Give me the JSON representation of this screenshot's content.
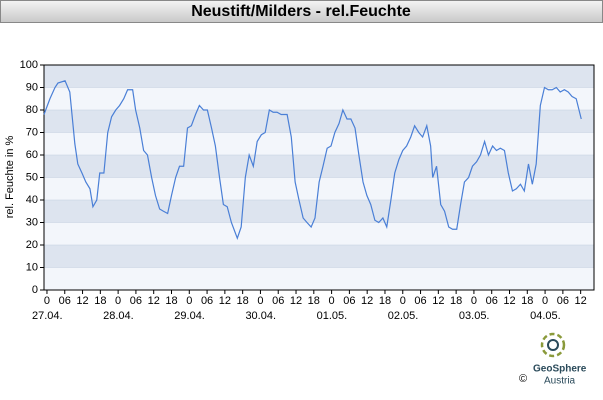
{
  "chart_data": {
    "type": "line",
    "title": "Neustift/Milders - rel.Feuchte",
    "y_label": "rel. Feuchte in %",
    "x": [
      -1.0,
      1.0,
      2.7,
      3.7,
      6.1,
      7.7,
      9.4,
      10.4,
      11.8,
      13.1,
      14.5,
      15.5,
      16.8,
      17.8,
      19.2,
      20.5,
      21.8,
      23.2,
      24.5,
      25.9,
      27.2,
      28.9,
      29.9,
      31.3,
      32.6,
      33.9,
      35.3,
      36.6,
      38.0,
      39.3,
      40.7,
      42.0,
      43.4,
      44.7,
      46.1,
      47.4,
      48.7,
      50.1,
      51.4,
      52.8,
      54.1,
      55.5,
      56.8,
      58.2,
      59.5,
      60.8,
      62.2,
      64.2,
      65.5,
      66.9,
      68.2,
      69.6,
      70.9,
      72.3,
      73.6,
      75.0,
      76.3,
      77.6,
      79.0,
      81.0,
      82.4,
      83.7,
      85.0,
      86.4,
      87.7,
      89.1,
      90.4,
      91.8,
      93.1,
      94.5,
      95.8,
      97.1,
      98.5,
      99.8,
      101.2,
      102.5,
      103.9,
      105.2,
      106.6,
      107.9,
      109.2,
      110.6,
      111.9,
      113.3,
      114.6,
      116.0,
      117.3,
      118.7,
      120.0,
      121.3,
      122.7,
      124.0,
      125.4,
      126.7,
      128.1,
      129.4,
      130.1,
      131.4,
      132.8,
      134.1,
      135.5,
      136.8,
      138.2,
      139.5,
      140.8,
      142.2,
      143.5,
      144.9,
      146.2,
      147.6,
      148.9,
      150.3,
      151.6,
      152.9,
      154.3,
      155.6,
      157.0,
      158.3,
      159.7,
      161.0,
      162.4,
      163.7,
      165.0,
      166.4,
      167.8,
      169.1,
      170.4,
      171.8,
      173.1,
      174.5,
      175.8,
      177.1,
      178.5,
      180.2
    ],
    "series": [
      {
        "name": "rel.Feuchte",
        "color": "#4a7fd6",
        "values": [
          78,
          85,
          90,
          92,
          93,
          88,
          65,
          56,
          52,
          48,
          45,
          37,
          40,
          52,
          52,
          70,
          77,
          80,
          82,
          85,
          89,
          89,
          80,
          72,
          62,
          60,
          50,
          42,
          36,
          35,
          34,
          42,
          50,
          55,
          55,
          72,
          73,
          78,
          82,
          80,
          80,
          72,
          64,
          50,
          38,
          37,
          30,
          23,
          28,
          50,
          60,
          55,
          66,
          69,
          70,
          80,
          79,
          79,
          78,
          78,
          68,
          48,
          40,
          32,
          30,
          28,
          32,
          48,
          55,
          63,
          64,
          70,
          74,
          80,
          76,
          76,
          72,
          60,
          48,
          42,
          38,
          31,
          30,
          32,
          28,
          40,
          52,
          58,
          62,
          64,
          68,
          73,
          70,
          68,
          73,
          64,
          50,
          55,
          38,
          35,
          28,
          27,
          27,
          38,
          48,
          50,
          55,
          57,
          60,
          66,
          60,
          64,
          62,
          63,
          62,
          52,
          44,
          45,
          47,
          44,
          56,
          47,
          56,
          82,
          90,
          89,
          89,
          90,
          88,
          89,
          88,
          86,
          85,
          76
        ]
      }
    ],
    "xlim": [
      -1,
      184.5
    ],
    "xticks": [
      {
        "value": 0,
        "label": "0"
      },
      {
        "value": 6,
        "label": "06"
      },
      {
        "value": 12,
        "label": "12"
      },
      {
        "value": 18,
        "label": "18"
      },
      {
        "value": 24,
        "label": "0"
      },
      {
        "value": 30,
        "label": "06"
      },
      {
        "value": 36,
        "label": "12"
      },
      {
        "value": 42,
        "label": "18"
      },
      {
        "value": 48,
        "label": "0"
      },
      {
        "value": 54,
        "label": "06"
      },
      {
        "value": 60,
        "label": "12"
      },
      {
        "value": 66,
        "label": "18"
      },
      {
        "value": 72,
        "label": "0"
      },
      {
        "value": 78,
        "label": "06"
      },
      {
        "value": 84,
        "label": "12"
      },
      {
        "value": 90,
        "label": "18"
      },
      {
        "value": 96,
        "label": "0"
      },
      {
        "value": 102,
        "label": "06"
      },
      {
        "value": 108,
        "label": "12"
      },
      {
        "value": 114,
        "label": "18"
      },
      {
        "value": 120,
        "label": "0"
      },
      {
        "value": 126,
        "label": "06"
      },
      {
        "value": 132,
        "label": "12"
      },
      {
        "value": 138,
        "label": "18"
      },
      {
        "value": 144,
        "label": "0"
      },
      {
        "value": 150,
        "label": "06"
      },
      {
        "value": 156,
        "label": "12"
      },
      {
        "value": 162,
        "label": "18"
      },
      {
        "value": 168,
        "label": "0"
      },
      {
        "value": 174,
        "label": "06"
      },
      {
        "value": 180,
        "label": "12"
      }
    ],
    "date_labels": [
      {
        "value": 0,
        "label": "27.04."
      },
      {
        "value": 24,
        "label": "28.04."
      },
      {
        "value": 48,
        "label": "29.04."
      },
      {
        "value": 72,
        "label": "30.04."
      },
      {
        "value": 96,
        "label": "01.05."
      },
      {
        "value": 120,
        "label": "02.05."
      },
      {
        "value": 144,
        "label": "03.05."
      },
      {
        "value": 168,
        "label": "04.05."
      }
    ],
    "ylim": [
      0,
      100
    ],
    "yticks": [
      0,
      10,
      20,
      30,
      40,
      50,
      60,
      70,
      80,
      90,
      100
    ],
    "grid": true
  },
  "logo": {
    "name": "GeoSphere",
    "sub": "Austria",
    "copyright": "©"
  }
}
